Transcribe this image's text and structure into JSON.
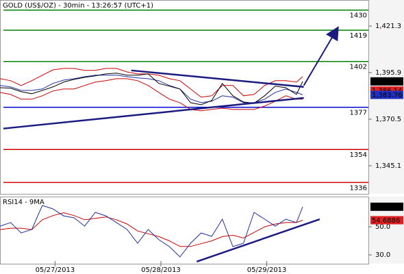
{
  "chart_data": [
    {
      "type": "line",
      "title": "GOLD (US$/OZ) - 30min - 13:26:57 (UTC+1)",
      "x": [
        0,
        5,
        10,
        15,
        20,
        25,
        30,
        35,
        40,
        45,
        50,
        55,
        60,
        65,
        70,
        75,
        80,
        85,
        90,
        95,
        100,
        105,
        110,
        115,
        120,
        125,
        130,
        135,
        140,
        143
      ],
      "xlim": [
        0,
        174
      ],
      "ylim": [
        1329.8,
        1435.5
      ],
      "yticks": [
        {
          "value": 1345.1,
          "label": "1,345.1"
        },
        {
          "value": 1370.5,
          "label": "1,370.5"
        },
        {
          "value": 1395.9,
          "label": "1,395.9"
        },
        {
          "value": 1421.3,
          "label": "1,421.3"
        }
      ],
      "series": [
        {
          "color": "#cc0000",
          "values": [
            1392.6,
            1391.5,
            1388.9,
            1391.5,
            1394.5,
            1397.4,
            1398.2,
            1398.2,
            1397.1,
            1397.1,
            1398.2,
            1398.2,
            1396.3,
            1395.2,
            1395.2,
            1394.5,
            1392.6,
            1391.5,
            1387.0,
            1382.5,
            1383.3,
            1388.9,
            1388.9,
            1383.3,
            1384.0,
            1388.9,
            1391.5,
            1391.5,
            1390.7,
            1393.7
          ]
        },
        {
          "color": "#cc0000",
          "values": [
            1385.1,
            1384.0,
            1381.4,
            1381.4,
            1383.3,
            1385.9,
            1387.0,
            1387.0,
            1388.9,
            1390.7,
            1391.5,
            1392.6,
            1392.6,
            1391.5,
            1388.9,
            1385.1,
            1381.4,
            1379.5,
            1375.8,
            1375.1,
            1375.8,
            1376.5,
            1375.8,
            1375.8,
            1375.8,
            1377.7,
            1380.3,
            1383.3,
            1381.4,
            1381.4
          ]
        },
        {
          "color": "#1f2f9f",
          "values": [
            1388.9,
            1388.1,
            1386.2,
            1386.2,
            1387.0,
            1390.0,
            1391.8,
            1392.6,
            1393.7,
            1394.5,
            1394.5,
            1394.5,
            1393.7,
            1393.0,
            1392.6,
            1391.5,
            1388.9,
            1387.0,
            1381.4,
            1379.5,
            1380.3,
            1383.3,
            1382.5,
            1379.5,
            1379.5,
            1381.4,
            1385.1,
            1387.0,
            1385.1,
            1383.8
          ]
        },
        {
          "color": "#000000",
          "values": [
            1387.7,
            1387.4,
            1385.5,
            1384.4,
            1386.2,
            1388.1,
            1390.7,
            1392.2,
            1393.3,
            1394.1,
            1395.2,
            1395.6,
            1394.5,
            1394.5,
            1395.2,
            1390.0,
            1388.5,
            1387.0,
            1379.5,
            1378.4,
            1380.7,
            1390.0,
            1383.3,
            1379.9,
            1379.2,
            1383.3,
            1388.5,
            1387.7,
            1384.0,
            1391.1
          ]
        }
      ],
      "levels": [
        {
          "value": 1430,
          "color": "#008000"
        },
        {
          "value": 1419,
          "color": "#008000"
        },
        {
          "value": 1402,
          "color": "#008000"
        },
        {
          "value": 1377,
          "color": "#0000cc"
        },
        {
          "value": 1354,
          "color": "#cc0000"
        },
        {
          "value": 1336,
          "color": "#cc0000"
        }
      ],
      "markers": [
        {
          "value": 1391.12,
          "label": "1,391.12",
          "color": "#000000"
        },
        {
          "value": 1386.14,
          "label": "1,386.14",
          "color": "#e02020"
        },
        {
          "value": 1383.76,
          "label": "1,383.76",
          "color": "#2030c0"
        }
      ],
      "trendlines": [
        {
          "x": [
            62,
            143.5
          ],
          "values": [
            1397.1,
            1388.1
          ],
          "color": "#1a1a80"
        },
        {
          "x": [
            1.6,
            143.5
          ],
          "values": [
            1365.4,
            1382.1
          ],
          "color": "#1a1a80"
        }
      ],
      "arrows": [
        {
          "x": [
            143.5,
            158.7
          ],
          "values": [
            1388.9,
            1418.7
          ],
          "color": "#1a1a80"
        }
      ]
    },
    {
      "type": "line",
      "title": "RSI14 - 9MA",
      "x": [
        0,
        5,
        10,
        15,
        20,
        25,
        30,
        35,
        40,
        45,
        50,
        55,
        60,
        65,
        70,
        75,
        80,
        85,
        90,
        95,
        100,
        105,
        110,
        115,
        120,
        125,
        130,
        135,
        140,
        143
      ],
      "xlim": [
        0,
        174
      ],
      "ylim": [
        23.7,
        71.5
      ],
      "xticks": [
        {
          "value": 26,
          "label": "05/27/2013"
        },
        {
          "value": 76,
          "label": "05/28/2013"
        },
        {
          "value": 126,
          "label": "05/29/2013"
        }
      ],
      "yticks": [
        {
          "value": 30,
          "label": "30.0"
        },
        {
          "value": 50,
          "label": "50.0"
        }
      ],
      "series": [
        {
          "color": "#cc0000",
          "values": [
            48,
            49,
            49,
            48,
            55,
            58,
            60,
            58,
            55,
            56,
            57,
            55,
            52,
            47,
            45,
            43,
            40,
            36,
            36,
            38,
            40,
            43,
            44,
            42,
            46,
            50,
            52,
            53,
            53,
            54.7
          ]
        },
        {
          "color": "#1f2f9f",
          "values": [
            50.5,
            53.0,
            45.6,
            48.1,
            65.2,
            62.7,
            57.8,
            56.4,
            50.5,
            60.3,
            57.8,
            53.0,
            48.1,
            38.3,
            48.1,
            40.8,
            35.9,
            28.6,
            38.3,
            45.6,
            43.2,
            55.4,
            35.9,
            38.3,
            60.3,
            55.4,
            50.5,
            55.4,
            53.0,
            64.3
          ]
        }
      ],
      "markers": [
        {
          "value": 64.2794,
          "label": "64.2794",
          "color": "#000000"
        },
        {
          "value": 54.6886,
          "label": "54.6886",
          "color": "#e02020"
        }
      ],
      "trendlines": [
        {
          "x": [
            92.9,
            151
          ],
          "values": [
            25.2,
            55.4
          ],
          "color": "#1a1a80"
        }
      ]
    }
  ]
}
